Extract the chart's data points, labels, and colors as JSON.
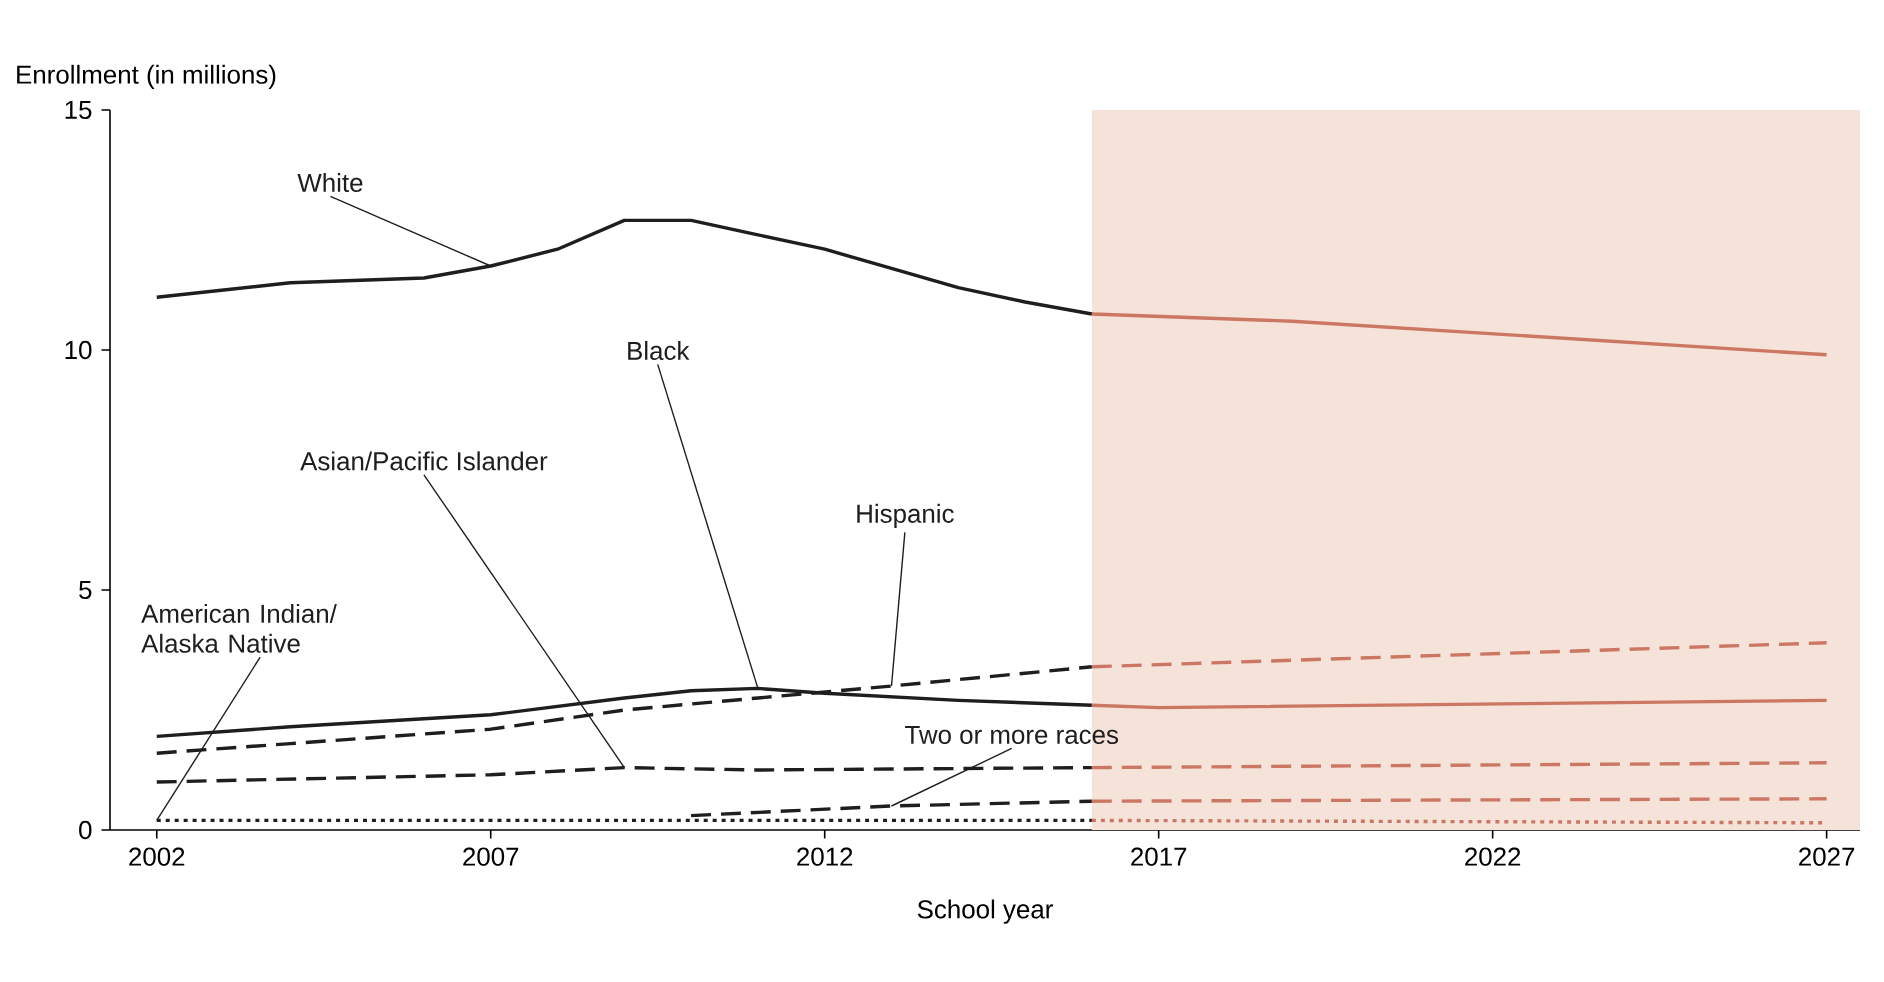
{
  "chart_data": {
    "type": "line",
    "xlabel": "School year",
    "ylabel": "Enrollment (in millions)",
    "xlim": [
      2001.3,
      2027.5
    ],
    "ylim": [
      0,
      15
    ],
    "xticks": [
      2002,
      2007,
      2012,
      2017,
      2022,
      2027
    ],
    "yticks": [
      0,
      5,
      10,
      15
    ],
    "bands": [
      {
        "axis": "x",
        "from": 2016,
        "to": 2027.5,
        "color": "#f5e2d9"
      }
    ],
    "series": [
      {
        "name": "White",
        "color": "#1e1e1e",
        "line_style": "solid",
        "x": [
          2002,
          2004,
          2006,
          2007,
          2008,
          2009,
          2010,
          2011,
          2012,
          2013,
          2014,
          2015,
          2016
        ],
        "values": [
          11.1,
          11.4,
          11.5,
          11.75,
          12.1,
          12.7,
          12.7,
          12.4,
          12.1,
          11.7,
          11.3,
          11.0,
          10.75
        ]
      },
      {
        "color": "#cc7764",
        "line_style": "solid",
        "x": [
          2016,
          2019,
          2027
        ],
        "values": [
          10.75,
          10.6,
          9.9
        ]
      },
      {
        "name": "Black",
        "color": "#1e1e1e",
        "line_style": "solid",
        "x": [
          2002,
          2004,
          2007,
          2009,
          2010,
          2011,
          2012,
          2014,
          2016
        ],
        "values": [
          1.95,
          2.15,
          2.4,
          2.75,
          2.9,
          2.95,
          2.85,
          2.7,
          2.6
        ]
      },
      {
        "color": "#cc7764",
        "line_style": "solid",
        "x": [
          2016,
          2017,
          2027
        ],
        "values": [
          2.6,
          2.55,
          2.7
        ]
      },
      {
        "name": "Hispanic",
        "color": "#1e1e1e",
        "line_style": "dashed",
        "x": [
          2002,
          2004,
          2007,
          2009,
          2011,
          2013,
          2016
        ],
        "values": [
          1.6,
          1.8,
          2.1,
          2.5,
          2.75,
          3.0,
          3.4
        ]
      },
      {
        "color": "#cc7764",
        "line_style": "dashed",
        "x": [
          2016,
          2027
        ],
        "values": [
          3.4,
          3.9
        ]
      },
      {
        "name": "Asian/Pacific Islander",
        "color": "#1e1e1e",
        "line_style": "dashed",
        "x": [
          2002,
          2007,
          2009,
          2011,
          2016
        ],
        "values": [
          1.0,
          1.15,
          1.3,
          1.25,
          1.3
        ]
      },
      {
        "color": "#cc7764",
        "line_style": "dashed",
        "x": [
          2016,
          2027
        ],
        "values": [
          1.3,
          1.4
        ]
      },
      {
        "name": "Two or more races",
        "color": "#1e1e1e",
        "line_style": "dashed",
        "x": [
          2010,
          2013,
          2016
        ],
        "values": [
          0.3,
          0.5,
          0.6
        ]
      },
      {
        "color": "#cc7764",
        "line_style": "dashed",
        "x": [
          2016,
          2027
        ],
        "values": [
          0.6,
          0.65
        ]
      },
      {
        "name": "American Indian/ Alaska Native",
        "color": "#1e1e1e",
        "line_style": "dotted",
        "x": [
          2002,
          2016
        ],
        "values": [
          0.2,
          0.2
        ]
      },
      {
        "color": "#cc7764",
        "line_style": "dotted",
        "x": [
          2016,
          2027
        ],
        "values": [
          0.2,
          0.15
        ]
      }
    ]
  }
}
